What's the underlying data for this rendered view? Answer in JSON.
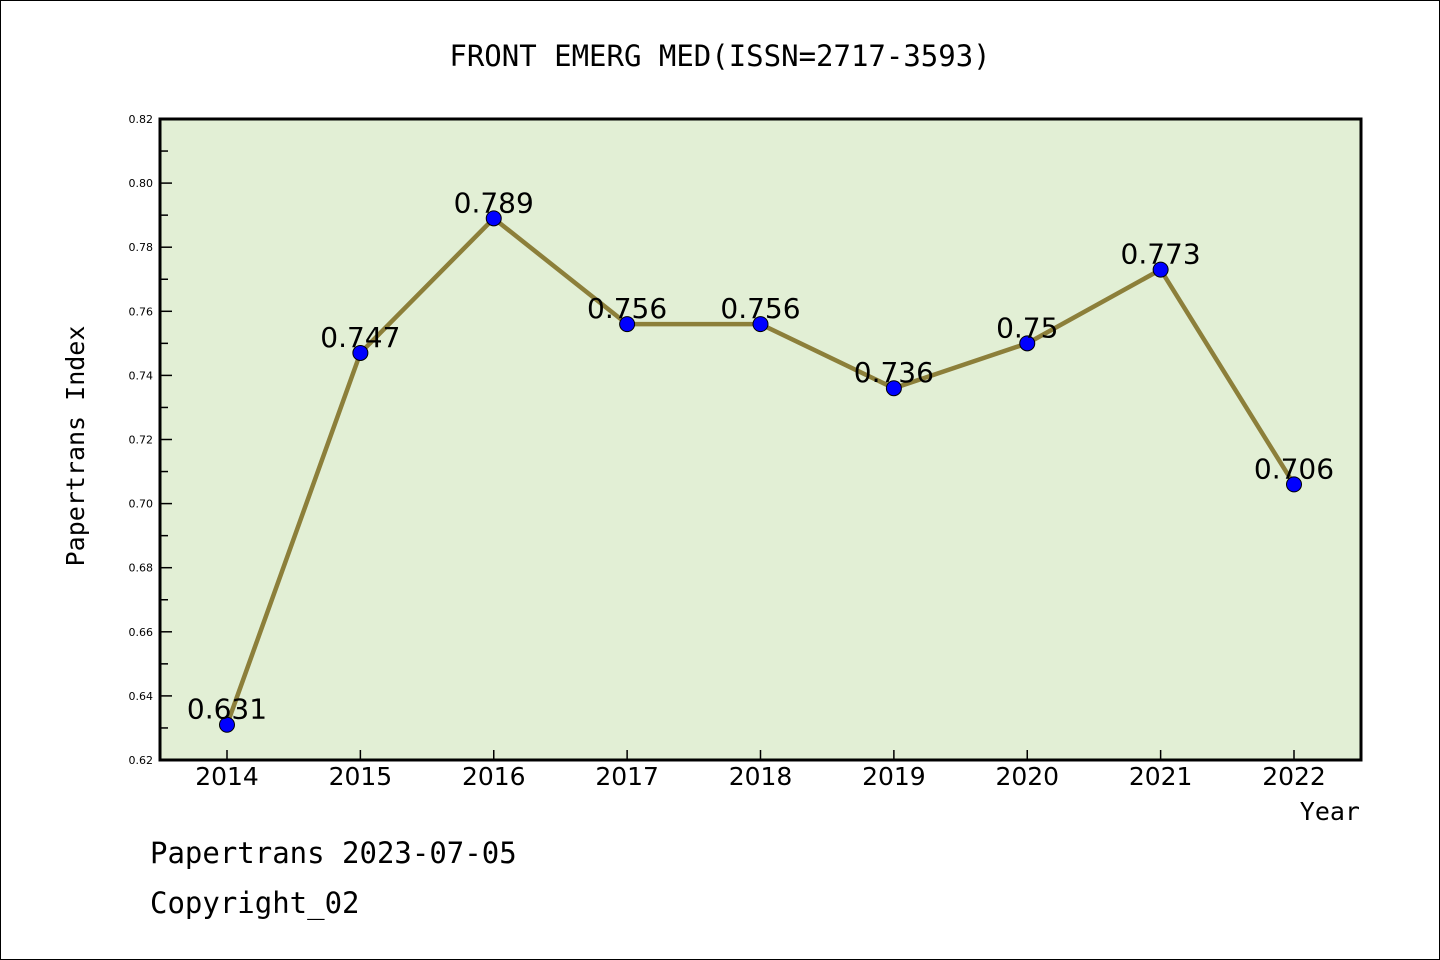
{
  "chart_data": {
    "type": "line",
    "title": "FRONT EMERG MED(ISSN=2717-3593)",
    "xlabel": "Year",
    "ylabel": "Papertrans Index",
    "categories": [
      "2014",
      "2015",
      "2016",
      "2017",
      "2018",
      "2019",
      "2020",
      "2021",
      "2022"
    ],
    "series": [
      {
        "name": "Papertrans Index",
        "values": [
          0.631,
          0.747,
          0.789,
          0.756,
          0.756,
          0.736,
          0.75,
          0.773,
          0.706
        ],
        "labels": [
          "0.631",
          "0.747",
          "0.789",
          "0.756",
          "0.756",
          "0.736",
          "0.75",
          "0.773",
          "0.706"
        ]
      }
    ],
    "ylim": [
      0.62,
      0.82
    ],
    "yticks": [
      "0.62",
      "0.64",
      "0.66",
      "0.68",
      "0.70",
      "0.72",
      "0.74",
      "0.76",
      "0.78",
      "0.80",
      "0.82"
    ],
    "grid": false,
    "colors": {
      "line": "#8c7f3a",
      "marker": "#0000ff",
      "background": "#e2efd5"
    }
  },
  "footer": {
    "line1": "Papertrans 2023-07-05",
    "line2": "Copyright_02"
  }
}
